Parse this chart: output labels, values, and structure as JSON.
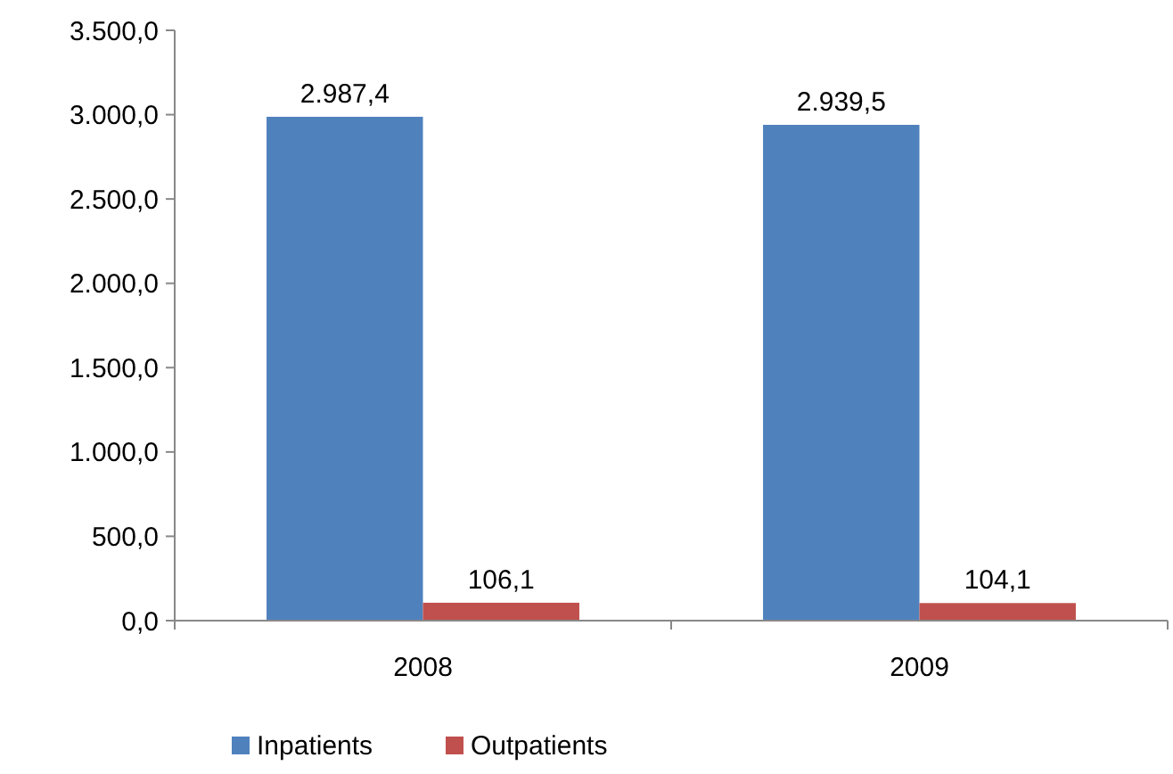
{
  "chart_data": {
    "type": "bar",
    "categories": [
      "2008",
      "2009"
    ],
    "series": [
      {
        "name": "Inpatients",
        "color": "#4f81bd",
        "values": [
          2987.4,
          2939.5
        ],
        "value_labels": [
          "2.987,4",
          "2.939,5"
        ]
      },
      {
        "name": "Outpatients",
        "color": "#c0504d",
        "values": [
          106.1,
          104.1
        ],
        "value_labels": [
          "106,1",
          "104,1"
        ]
      }
    ],
    "ylim": [
      0,
      3500
    ],
    "yticks": [
      {
        "value": 0,
        "label": "0,0"
      },
      {
        "value": 500,
        "label": "500,0"
      },
      {
        "value": 1000,
        "label": "1.000,0"
      },
      {
        "value": 1500,
        "label": "1.500,0"
      },
      {
        "value": 2000,
        "label": "2.000,0"
      },
      {
        "value": 2500,
        "label": "2.500,0"
      },
      {
        "value": 3000,
        "label": "3.000,0"
      },
      {
        "value": 3500,
        "label": "3.500,0"
      }
    ],
    "grid": false,
    "legend": "bottom"
  }
}
